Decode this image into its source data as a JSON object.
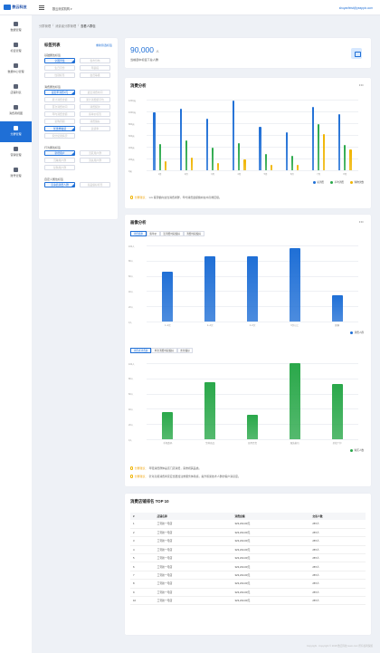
{
  "app": {
    "logo": "数云科技",
    "org": "数云测试机构 ▾",
    "email": "shuyanfeist@yeappix.com"
  },
  "nav": [
    {
      "label": "数据管理",
      "icon": "database-icon"
    },
    {
      "label": "标签管理",
      "icon": "tag-icon"
    },
    {
      "label": "数据中心管理",
      "icon": "hub-icon"
    },
    {
      "label": "店铺列表",
      "icon": "store-icon"
    },
    {
      "label": "消费者视图",
      "icon": "consumer-icon"
    },
    {
      "label": "分群管理",
      "icon": "group-icon",
      "active": true
    },
    {
      "label": "营销管理",
      "icon": "marketing-icon"
    },
    {
      "label": "账号管理",
      "icon": "account-icon"
    }
  ],
  "breadcrumb": [
    "分群管理",
    "消费者分群管理",
    "查看人群包"
  ],
  "tagpanel": {
    "title": "标签列表",
    "new_label": "重新筛选标签",
    "groups": [
      {
        "title": "基础属性标签",
        "tags": [
          {
            "t": "全国男性",
            "s": true
          },
          {
            "t": "省市分布"
          },
          {
            "t": "生日月份"
          },
          {
            "t": "年龄段"
          },
          {
            "t": "性别标签"
          },
          {
            "t": "会员等级"
          }
        ]
      },
      {
        "title": "消费属性标签",
        "tags": [
          {
            "t": "最近年消费0元",
            "s": true
          },
          {
            "t": "最近消费时间"
          },
          {
            "t": "累计消费金额"
          },
          {
            "t": "累计消费额平均"
          },
          {
            "t": "首次消费时间"
          },
          {
            "t": "消费频次"
          },
          {
            "t": "年均消费金额"
          },
          {
            "t": "客单价标签"
          },
          {
            "t": "复购周期"
          },
          {
            "t": "消费偏好"
          },
          {
            "t": "优惠券敏感",
            "s": true
          },
          {
            "t": "退货率"
          },
          {
            "t": "积分使用情况"
          }
        ]
      },
      {
        "title": "行为属性标签",
        "tags": [
          {
            "t": "新增用户",
            "s": true
          },
          {
            "t": "活跃用户群"
          },
          {
            "t": "沉睡用户群"
          },
          {
            "t": "流失用户群"
          },
          {
            "t": "复购用户群"
          }
        ]
      },
      {
        "title": "自定义属性标签",
        "tags": [
          {
            "t": "高净值消费人群",
            "s": true
          },
          {
            "t": "商品偏好标签"
          }
        ]
      }
    ]
  },
  "stat": {
    "value": "90,000",
    "unit": "人",
    "label": "当前选中标签下总人群"
  },
  "consume": {
    "title": "消费分析",
    "tip_label": "分群建议：",
    "tip": "xxx 客源偏向女性消费者群，年均消费金额偏向在中高端层级。"
  },
  "portrait": {
    "title": "画像分析",
    "tabs1": [
      "消费频率",
      "客单价",
      "近消费时段偏好",
      "消费时段偏好"
    ],
    "tabs2": [
      "消费者消费额",
      "单次消费时段偏好",
      "支付偏好"
    ],
    "tip1_label": "分群建议：",
    "tip1": "年轻消费群体是该门店消费，需重视其品类。",
    "tip2_label": "分群建议：",
    "tip2": "针对高频消费商家应当更加注重服务体验感，提升积累技术人群的客户满意度。"
  },
  "chart_data": [
    {
      "type": "bar",
      "title": "消费分析",
      "categories": [
        "1月",
        "2月",
        "3月",
        "4月",
        "5月",
        "6月",
        "7月",
        "8月"
      ],
      "ylim": [
        0,
        1200
      ],
      "yticks": [
        "1200元",
        "1000元",
        "800元",
        "600元",
        "400元",
        "200元",
        "0元"
      ],
      "series": [
        {
          "name": "总消费",
          "color": "#1f6fd6",
          "values": [
            980,
            1050,
            880,
            1190,
            740,
            640,
            1080,
            960
          ]
        },
        {
          "name": "平均消费",
          "color": "#2aa84a",
          "values": [
            450,
            510,
            380,
            460,
            280,
            250,
            780,
            430
          ]
        },
        {
          "name": "购物次数",
          "color": "#f0b400",
          "values": [
            150,
            220,
            130,
            180,
            100,
            90,
            620,
            360
          ]
        }
      ]
    },
    {
      "type": "bar",
      "categories": [
        "1~2次",
        "2~4次",
        "4~6次",
        "6次以上",
        "频繁"
      ],
      "ylim": [
        0,
        100
      ],
      "yticks": [
        "100人",
        "80人",
        "60人",
        "40人",
        "20人",
        "0人"
      ],
      "series": [
        {
          "name": "消费人群",
          "color": "#1f6fd6",
          "values": [
            66,
            86,
            86,
            97,
            35
          ]
        }
      ]
    },
    {
      "type": "bar",
      "categories": [
        "手机数码",
        "生鲜商品",
        "日用百货",
        "服装鞋包",
        "美妆个护"
      ],
      "ylim": [
        0,
        100
      ],
      "yticks": [
        "100人",
        "80人",
        "60人",
        "40人",
        "20人",
        "0人"
      ],
      "series": [
        {
          "name": "购买人数",
          "color": "#2aa84a",
          "values": [
            36,
            75,
            32,
            100,
            73
          ]
        }
      ]
    }
  ],
  "ranking": {
    "title": "消费店铺排名 TOP 10",
    "headers": [
      "#",
      "店铺名称",
      "消费金额",
      "交易人数"
    ],
    "rows": [
      [
        "1",
        "工号新一号店",
        "323,234.00元",
        "287人"
      ],
      [
        "2",
        "工号新一号店",
        "323,234.00元",
        "287人"
      ],
      [
        "3",
        "工号新一号店",
        "323,234.00元",
        "287人"
      ],
      [
        "4",
        "工号新一号店",
        "323,234.00元",
        "287人"
      ],
      [
        "5",
        "工号新一号店",
        "323,234.00元",
        "287人"
      ],
      [
        "6",
        "工号新一号店",
        "323,234.00元",
        "287人"
      ],
      [
        "7",
        "工号新一号店",
        "323,234.00元",
        "287人"
      ],
      [
        "8",
        "工号新一号店",
        "323,234.00元",
        "287人"
      ],
      [
        "9",
        "工号新一号店",
        "323,234.00元",
        "287人"
      ],
      [
        "10",
        "工号新一号店",
        "323,234.00元",
        "287人"
      ]
    ]
  },
  "footer": "Copyright · Copyright © 2018 数云科技 team.com 所有权利保留"
}
